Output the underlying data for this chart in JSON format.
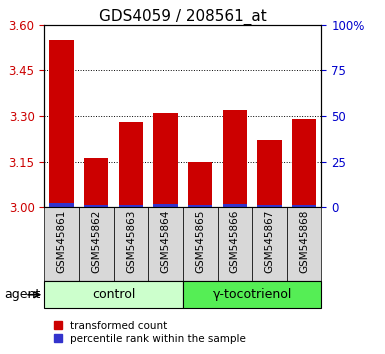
{
  "title": "GDS4059 / 208561_at",
  "categories": [
    "GSM545861",
    "GSM545862",
    "GSM545863",
    "GSM545864",
    "GSM545865",
    "GSM545866",
    "GSM545867",
    "GSM545868"
  ],
  "red_values": [
    3.55,
    3.16,
    3.28,
    3.31,
    3.15,
    3.32,
    3.22,
    3.29
  ],
  "blue_values": [
    0.012,
    0.008,
    0.007,
    0.01,
    0.007,
    0.01,
    0.008,
    0.008
  ],
  "base": 3.0,
  "ylim": [
    3.0,
    3.6
  ],
  "yticks_left": [
    3.0,
    3.15,
    3.3,
    3.45,
    3.6
  ],
  "yticks_right": [
    0,
    25,
    50,
    75,
    100
  ],
  "yticks_right_labels": [
    "0",
    "25",
    "50",
    "75",
    "100%"
  ],
  "red_color": "#cc0000",
  "blue_color": "#3333cc",
  "bar_width": 0.7,
  "group1_label": "control",
  "group2_label": "γ-tocotrienol",
  "group1_bg": "#ccffcc",
  "group2_bg": "#55ee55",
  "agent_label": "agent",
  "legend_red": "transformed count",
  "legend_blue": "percentile rank within the sample",
  "plot_bg": "#d8d8d8",
  "left_tick_color": "#cc0000",
  "right_tick_color": "#0000cc",
  "title_fontsize": 11,
  "tick_label_fontsize": 8.5,
  "bar_label_fontsize": 7.5
}
